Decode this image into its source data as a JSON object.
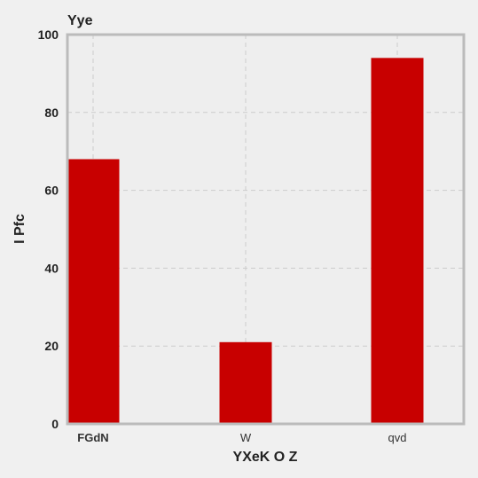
{
  "chart_data": {
    "type": "bar",
    "title": "Yye",
    "xlabel": "YXeK O Z",
    "ylabel": "I  Pfc",
    "categories": [
      "FGdN",
      "W",
      "qvd"
    ],
    "values": [
      68,
      21,
      94
    ],
    "ylim": [
      0,
      100
    ],
    "yticks": [
      0,
      20,
      40,
      60,
      80,
      100
    ],
    "grid": true,
    "colors": {
      "bar": "#c80000",
      "plot_background": "#eeeeee",
      "frame": "#bbbbbb",
      "grid": "#cccccc"
    }
  }
}
